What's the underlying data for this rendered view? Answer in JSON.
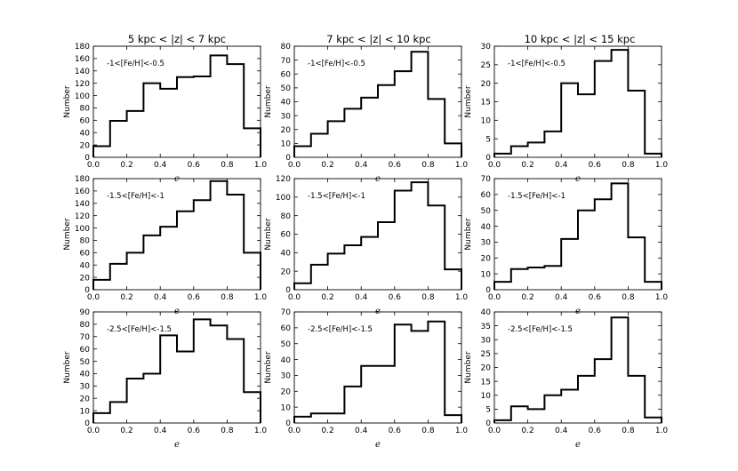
{
  "figure": {
    "columns": [
      {
        "title": "5 kpc < |z| < 7 kpc"
      },
      {
        "title": "7 kpc < |z| < 10 kpc"
      },
      {
        "title": "10 kpc < |z| < 15 kpc"
      }
    ]
  },
  "chart_data": [
    {
      "type": "step-histogram",
      "title": "5 kpc < |z| < 7 kpc",
      "annotation": "-1<[Fe/H]<-0.5",
      "xlabel": "e",
      "ylabel": "Number",
      "bin_edges": [
        0.0,
        0.1,
        0.2,
        0.3,
        0.4,
        0.5,
        0.6,
        0.7,
        0.8,
        0.9,
        1.0
      ],
      "values": [
        18,
        59,
        75,
        120,
        111,
        130,
        131,
        165,
        151,
        47
      ],
      "xlim": [
        0,
        1
      ],
      "ylim": [
        0,
        180
      ],
      "xticks": [
        "0.0",
        "0.2",
        "0.4",
        "0.6",
        "0.8",
        "1.0"
      ],
      "yticks": [
        "0",
        "20",
        "40",
        "60",
        "80",
        "100",
        "120",
        "140",
        "160",
        "180"
      ]
    },
    {
      "type": "step-histogram",
      "title": "7 kpc < |z| < 10 kpc",
      "annotation": "-1<[Fe/H]<-0.5",
      "xlabel": "e",
      "ylabel": "Number",
      "bin_edges": [
        0.0,
        0.1,
        0.2,
        0.3,
        0.4,
        0.5,
        0.6,
        0.7,
        0.8,
        0.9,
        1.0
      ],
      "values": [
        8,
        17,
        26,
        35,
        43,
        52,
        62,
        76,
        42,
        10
      ],
      "xlim": [
        0,
        1
      ],
      "ylim": [
        0,
        80
      ],
      "xticks": [
        "0.0",
        "0.2",
        "0.4",
        "0.6",
        "0.8",
        "1.0"
      ],
      "yticks": [
        "0",
        "10",
        "20",
        "30",
        "40",
        "50",
        "60",
        "70",
        "80"
      ]
    },
    {
      "type": "step-histogram",
      "title": "10 kpc < |z| < 15 kpc",
      "annotation": "-1<[Fe/H]<-0.5",
      "xlabel": "e",
      "ylabel": "Number",
      "bin_edges": [
        0.0,
        0.1,
        0.2,
        0.3,
        0.4,
        0.5,
        0.6,
        0.7,
        0.8,
        0.9,
        1.0
      ],
      "values": [
        1,
        3,
        4,
        7,
        20,
        17,
        26,
        29,
        18,
        1
      ],
      "xlim": [
        0,
        1
      ],
      "ylim": [
        0,
        30
      ],
      "xticks": [
        "0.0",
        "0.2",
        "0.4",
        "0.6",
        "0.8",
        "1.0"
      ],
      "yticks": [
        "0",
        "5",
        "10",
        "15",
        "20",
        "25",
        "30"
      ]
    },
    {
      "type": "step-histogram",
      "annotation": "-1.5<[Fe/H]<-1",
      "xlabel": "e",
      "ylabel": "Number",
      "bin_edges": [
        0.0,
        0.1,
        0.2,
        0.3,
        0.4,
        0.5,
        0.6,
        0.7,
        0.8,
        0.9,
        1.0
      ],
      "values": [
        16,
        42,
        60,
        88,
        102,
        127,
        145,
        176,
        154,
        60
      ],
      "xlim": [
        0,
        1
      ],
      "ylim": [
        0,
        180
      ],
      "xticks": [
        "0.0",
        "0.2",
        "0.4",
        "0.6",
        "0.8",
        "1.0"
      ],
      "yticks": [
        "0",
        "20",
        "40",
        "60",
        "80",
        "100",
        "120",
        "140",
        "160",
        "180"
      ]
    },
    {
      "type": "step-histogram",
      "annotation": "-1.5<[Fe/H]<-1",
      "xlabel": "e",
      "ylabel": "Number",
      "bin_edges": [
        0.0,
        0.1,
        0.2,
        0.3,
        0.4,
        0.5,
        0.6,
        0.7,
        0.8,
        0.9,
        1.0
      ],
      "values": [
        7,
        27,
        39,
        48,
        57,
        73,
        107,
        116,
        91,
        22
      ],
      "xlim": [
        0,
        1
      ],
      "ylim": [
        0,
        120
      ],
      "xticks": [
        "0.0",
        "0.2",
        "0.4",
        "0.6",
        "0.8",
        "1.0"
      ],
      "yticks": [
        "0",
        "20",
        "40",
        "60",
        "80",
        "100",
        "120"
      ]
    },
    {
      "type": "step-histogram",
      "annotation": "-1.5<[Fe/H]<-1",
      "xlabel": "e",
      "ylabel": "Number",
      "bin_edges": [
        0.0,
        0.1,
        0.2,
        0.3,
        0.4,
        0.5,
        0.6,
        0.7,
        0.8,
        0.9,
        1.0
      ],
      "values": [
        5,
        13,
        14,
        15,
        32,
        50,
        57,
        67,
        33,
        5
      ],
      "xlim": [
        0,
        1
      ],
      "ylim": [
        0,
        70
      ],
      "xticks": [
        "0.0",
        "0.2",
        "0.4",
        "0.6",
        "0.8",
        "1.0"
      ],
      "yticks": [
        "0",
        "10",
        "20",
        "30",
        "40",
        "50",
        "60",
        "70"
      ]
    },
    {
      "type": "step-histogram",
      "annotation": "-2.5<[Fe/H]<-1.5",
      "xlabel": "e",
      "ylabel": "Number",
      "bin_edges": [
        0.0,
        0.1,
        0.2,
        0.3,
        0.4,
        0.5,
        0.6,
        0.7,
        0.8,
        0.9,
        1.0
      ],
      "values": [
        8,
        17,
        36,
        40,
        71,
        58,
        84,
        79,
        68,
        25
      ],
      "xlim": [
        0,
        1
      ],
      "ylim": [
        0,
        90
      ],
      "xticks": [
        "0.0",
        "0.2",
        "0.4",
        "0.6",
        "0.8",
        "1.0"
      ],
      "yticks": [
        "0",
        "10",
        "20",
        "30",
        "40",
        "50",
        "60",
        "70",
        "80",
        "90"
      ]
    },
    {
      "type": "step-histogram",
      "annotation": "-2.5<[Fe/H]<-1.5",
      "xlabel": "e",
      "ylabel": "Number",
      "bin_edges": [
        0.0,
        0.1,
        0.2,
        0.3,
        0.4,
        0.5,
        0.6,
        0.7,
        0.8,
        0.9,
        1.0
      ],
      "values": [
        4,
        6,
        6,
        23,
        36,
        36,
        62,
        58,
        64,
        5
      ],
      "xlim": [
        0,
        1
      ],
      "ylim": [
        0,
        70
      ],
      "xticks": [
        "0.0",
        "0.2",
        "0.4",
        "0.6",
        "0.8",
        "1.0"
      ],
      "yticks": [
        "0",
        "10",
        "20",
        "30",
        "40",
        "50",
        "60",
        "70"
      ]
    },
    {
      "type": "step-histogram",
      "annotation": "-2.5<[Fe/H]<-1.5",
      "xlabel": "e",
      "ylabel": "Number",
      "bin_edges": [
        0.0,
        0.1,
        0.2,
        0.3,
        0.4,
        0.5,
        0.6,
        0.7,
        0.8,
        0.9,
        1.0
      ],
      "values": [
        1,
        6,
        5,
        10,
        12,
        17,
        23,
        38,
        17,
        2
      ],
      "xlim": [
        0,
        1
      ],
      "ylim": [
        0,
        40
      ],
      "xticks": [
        "0.0",
        "0.2",
        "0.4",
        "0.6",
        "0.8",
        "1.0"
      ],
      "yticks": [
        "0",
        "5",
        "10",
        "15",
        "20",
        "25",
        "30",
        "35",
        "40"
      ]
    }
  ]
}
